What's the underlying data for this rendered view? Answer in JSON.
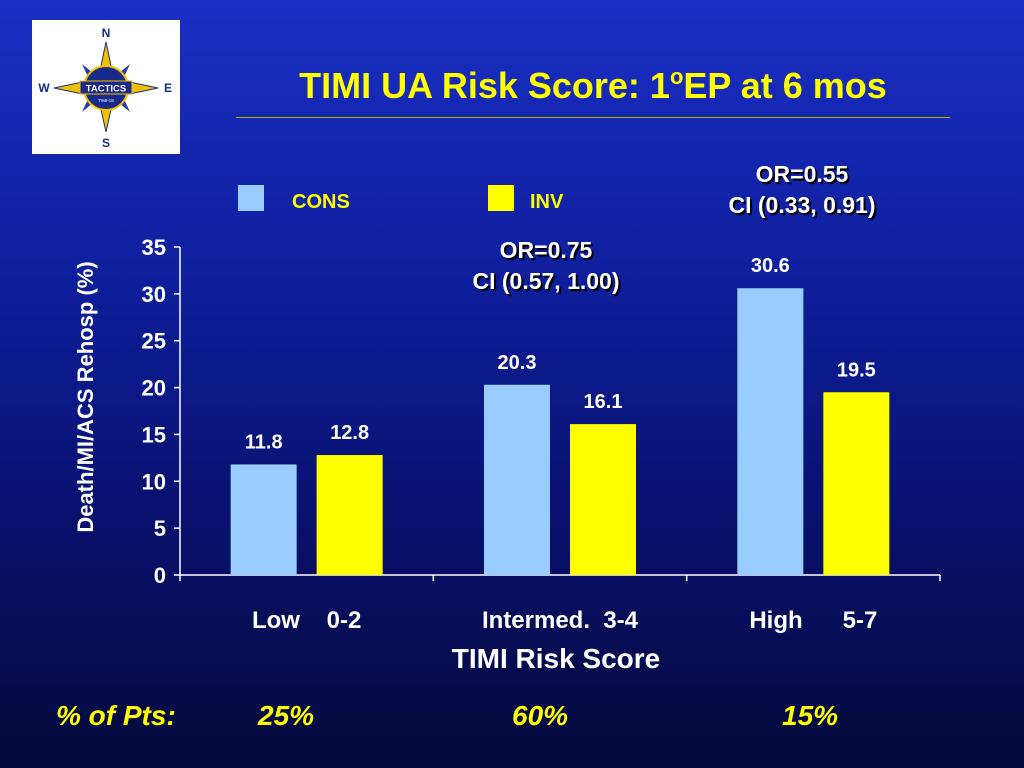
{
  "logo": {
    "text": "TACTICS",
    "subtext": "TIMI-18",
    "compass": {
      "n": "N",
      "e": "E",
      "s": "S",
      "w": "W"
    }
  },
  "title": {
    "main": "TIMI UA Risk Score: 1",
    "sup": "o",
    "tail": "EP at 6 mos"
  },
  "chart_data": {
    "type": "bar",
    "categories": [
      "Low    0-2",
      "Intermed.  3-4",
      "High      5-7"
    ],
    "series": [
      {
        "name": "CONS",
        "color": "#99ccff",
        "values": [
          11.8,
          20.3,
          30.6
        ]
      },
      {
        "name": "INV",
        "color": "#ffff00",
        "values": [
          12.8,
          16.1,
          19.5
        ]
      }
    ],
    "data_labels": {
      "CONS": [
        "11.8",
        "20.3",
        "30.6"
      ],
      "INV": [
        "12.8",
        "16.1",
        "19.5"
      ]
    },
    "ylim": [
      0,
      35
    ],
    "yticks": [
      0,
      5,
      10,
      15,
      20,
      25,
      30,
      35
    ],
    "ylabel": "Death/MI/ACS Rehosp (%)",
    "xlabel": "TIMI Risk Score",
    "legend_position": "top",
    "grid": false,
    "annotations": [
      {
        "category_index": 1,
        "lines": [
          "OR=0.75",
          "CI (0.57, 1.00)"
        ]
      },
      {
        "category_index": 2,
        "lines": [
          "OR=0.55",
          "CI (0.33, 0.91)"
        ]
      }
    ]
  },
  "pts_row": {
    "label": "% of Pts:",
    "values": [
      "25%",
      "60%",
      "15%"
    ]
  }
}
